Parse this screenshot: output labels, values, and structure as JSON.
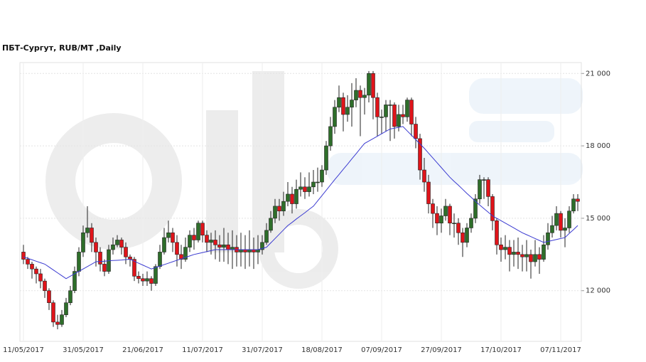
{
  "chart_data": {
    "type": "candlestick",
    "title": "ПБТ-Сургут,  RUB/MT ,Daily",
    "categories": [
      "11/05/2017",
      null,
      null,
      null,
      null,
      null,
      null,
      null,
      null,
      null,
      null,
      null,
      null,
      null,
      "31/05/2017",
      null,
      null,
      null,
      null,
      null,
      null,
      null,
      null,
      null,
      null,
      null,
      null,
      null,
      "21/06/2017",
      null,
      null,
      null,
      null,
      null,
      null,
      null,
      null,
      null,
      null,
      null,
      null,
      null,
      "11/07/2017",
      null,
      null,
      null,
      null,
      null,
      null,
      null,
      null,
      null,
      null,
      null,
      null,
      null,
      "31/07/2017",
      null,
      null,
      null,
      null,
      null,
      null,
      null,
      null,
      null,
      null,
      null,
      null,
      null,
      "18/08/2017",
      null,
      null,
      null,
      null,
      null,
      null,
      null,
      null,
      null,
      null,
      null,
      null,
      null,
      "07/09/2017",
      null,
      null,
      null,
      null,
      null,
      null,
      null,
      null,
      null,
      null,
      null,
      null,
      null,
      "27/09/2017",
      null,
      null,
      null,
      null,
      null,
      null,
      null,
      null,
      null,
      null,
      null,
      null,
      null,
      "17/10/2017",
      null,
      null,
      null,
      null,
      null,
      null,
      null,
      null,
      null,
      null,
      null,
      null,
      null,
      "07/11/2017",
      null,
      null,
      null,
      null
    ],
    "open": [
      13600,
      13300,
      13100,
      12900,
      12700,
      12400,
      12000,
      11500,
      10700,
      10600,
      11000,
      11500,
      12000,
      12800,
      13600,
      14400,
      14600,
      14000,
      13600,
      13100,
      12800,
      13700,
      13900,
      14100,
      13800,
      13400,
      13300,
      12600,
      12500,
      12400,
      12500,
      12300,
      13000,
      13600,
      14200,
      14400,
      14000,
      13500,
      13300,
      13800,
      14300,
      14100,
      14800,
      14300,
      14000,
      14100,
      13900,
      13800,
      13900,
      13700,
      13800,
      13600,
      13700,
      13600,
      13700,
      13600,
      13700,
      14000,
      14500,
      15000,
      15500,
      15300,
      15700,
      16000,
      15600,
      16200,
      16300,
      16100,
      16300,
      16500,
      16500,
      17000,
      18000,
      18800,
      19600,
      20000,
      19300,
      19600,
      19900,
      20300,
      20000,
      20100,
      21000,
      20000,
      19200,
      19200,
      19700,
      19700,
      18800,
      19300,
      19200,
      19900,
      18900,
      18300,
      17000,
      16500,
      15600,
      15200,
      14800,
      15100,
      15500,
      14800,
      14800,
      14400,
      14000,
      14600,
      15000,
      15800,
      16600,
      16600,
      15900,
      14900,
      13900,
      13700,
      13800,
      13500,
      13600,
      13500,
      13400,
      13500,
      13200,
      13500,
      13300,
      13900,
      14400,
      14700,
      15200,
      14500,
      14600,
      15300,
      15800
    ],
    "high": [
      13900,
      13400,
      13200,
      13000,
      12900,
      12500,
      12100,
      11600,
      11000,
      11200,
      11700,
      12200,
      13000,
      13800,
      14700,
      15500,
      14800,
      14200,
      13800,
      13300,
      13900,
      14200,
      14300,
      14200,
      14000,
      13500,
      13400,
      12800,
      12700,
      12800,
      12600,
      13100,
      13900,
      14600,
      14900,
      14600,
      14300,
      13900,
      14200,
      14500,
      14600,
      14900,
      14900,
      14500,
      14400,
      14500,
      14300,
      14600,
      14400,
      14500,
      14300,
      14400,
      14300,
      14500,
      14200,
      14300,
      14300,
      14800,
      15300,
      15800,
      15800,
      16100,
      16500,
      16300,
      16600,
      16900,
      16700,
      16900,
      17000,
      17100,
      17200,
      18200,
      19200,
      19900,
      20500,
      20200,
      20100,
      20600,
      20800,
      20500,
      20400,
      21100,
      21100,
      20200,
      19500,
      19900,
      19900,
      19800,
      19700,
      19700,
      20000,
      20000,
      19200,
      18500,
      17500,
      16800,
      15800,
      15500,
      15400,
      15800,
      15600,
      15200,
      15000,
      14600,
      14800,
      15200,
      16000,
      16800,
      16700,
      16700,
      16000,
      15000,
      14200,
      14300,
      14100,
      14100,
      14200,
      13900,
      14100,
      13700,
      14100,
      13800,
      14300,
      14800,
      15100,
      15500,
      15300,
      15000,
      15500,
      16000,
      16000
    ],
    "low": [
      13100,
      12900,
      12500,
      12300,
      12100,
      11700,
      11200,
      10500,
      10400,
      10500,
      10900,
      11400,
      11900,
      12600,
      13400,
      14200,
      13600,
      13000,
      12800,
      12600,
      12700,
      13500,
      13800,
      13500,
      13100,
      13000,
      12400,
      12300,
      12200,
      12200,
      12000,
      12200,
      12900,
      13500,
      14000,
      13600,
      13000,
      12900,
      13200,
      13600,
      13700,
      14000,
      14000,
      13600,
      13500,
      13300,
      13200,
      13200,
      13100,
      12900,
      13000,
      13000,
      12900,
      13000,
      12900,
      13100,
      13500,
      13900,
      14400,
      14800,
      14900,
      15100,
      15500,
      15200,
      15400,
      15900,
      15800,
      15900,
      16000,
      16100,
      16300,
      16800,
      17800,
      18500,
      19400,
      18600,
      19000,
      18800,
      19600,
      18400,
      19300,
      19800,
      19100,
      18400,
      18500,
      18600,
      18200,
      18300,
      18600,
      18900,
      19000,
      18400,
      17900,
      16600,
      16100,
      15200,
      14600,
      14300,
      14400,
      14900,
      14300,
      14200,
      13900,
      13400,
      13800,
      14400,
      14800,
      15600,
      15800,
      15500,
      14500,
      13500,
      13200,
      13300,
      12800,
      13000,
      12900,
      12800,
      12800,
      12500,
      13000,
      12700,
      13200,
      13700,
      14200,
      14500,
      14200,
      13800,
      14400,
      15200,
      15300
    ],
    "close": [
      13300,
      13100,
      12900,
      12700,
      12400,
      12000,
      11500,
      10700,
      10600,
      11000,
      11500,
      12000,
      12800,
      13600,
      14400,
      14600,
      14000,
      13600,
      13100,
      12800,
      13700,
      13900,
      14100,
      13800,
      13400,
      13300,
      12600,
      12500,
      12400,
      12500,
      12300,
      13000,
      13600,
      14200,
      14400,
      14000,
      13500,
      13300,
      13800,
      14300,
      14100,
      14800,
      14300,
      14000,
      14100,
      13900,
      13800,
      13900,
      13700,
      13800,
      13600,
      13700,
      13600,
      13700,
      13600,
      13700,
      14000,
      14500,
      15000,
      15500,
      15300,
      15700,
      16000,
      15600,
      16200,
      16300,
      16100,
      16300,
      16500,
      16500,
      17000,
      18000,
      18800,
      19600,
      20000,
      19300,
      19600,
      19900,
      20300,
      20000,
      20100,
      21000,
      20000,
      19200,
      19200,
      19700,
      19700,
      18800,
      19300,
      19200,
      19900,
      18900,
      18300,
      17000,
      16500,
      15600,
      15200,
      14800,
      15100,
      15500,
      14800,
      14800,
      14400,
      14000,
      14600,
      15000,
      15800,
      16600,
      16600,
      15900,
      14900,
      13900,
      13700,
      13800,
      13500,
      13600,
      13500,
      13400,
      13500,
      13200,
      13500,
      13300,
      13900,
      14400,
      14700,
      15200,
      14500,
      14600,
      15300,
      15800,
      15700
    ],
    "moving_average": {
      "color": "#3b3bd1",
      "values": [
        13400,
        13340,
        13280,
        13220,
        13160,
        13100,
        12980,
        12860,
        12740,
        12620,
        12500,
        12600,
        12700,
        12800,
        12900,
        13000,
        13100,
        13200,
        13210,
        13220,
        13240,
        13250,
        13260,
        13270,
        13290,
        13300,
        13220,
        13140,
        13060,
        12980,
        12900,
        12960,
        13020,
        13080,
        13140,
        13200,
        13260,
        13320,
        13380,
        13440,
        13500,
        13540,
        13580,
        13620,
        13660,
        13700,
        13700,
        13700,
        13700,
        13700,
        13700,
        13700,
        13700,
        13700,
        13700,
        13700,
        13750,
        13800,
        13980,
        14160,
        14340,
        14520,
        14700,
        14830,
        14970,
        15100,
        15230,
        15370,
        15500,
        15720,
        15940,
        16160,
        16380,
        16600,
        16810,
        17030,
        17240,
        17460,
        17670,
        17890,
        18100,
        18200,
        18300,
        18400,
        18500,
        18600,
        18700,
        18730,
        18770,
        18800,
        18620,
        18440,
        18260,
        18080,
        17900,
        17700,
        17500,
        17300,
        17100,
        16900,
        16700,
        16530,
        16370,
        16200,
        16030,
        15870,
        15700,
        15550,
        15400,
        15250,
        15100,
        15000,
        14900,
        14800,
        14700,
        14600,
        14500,
        14400,
        14320,
        14240,
        14160,
        14080,
        14000,
        14040,
        14080,
        14120,
        14160,
        14200,
        14370,
        14530,
        14700
      ]
    },
    "up_color": "#2e6e2a",
    "down_color": "#e0141a",
    "ylim": [
      9900,
      21450
    ],
    "yticks": [
      {
        "value": 12000,
        "label": "12 000"
      },
      {
        "value": 15000,
        "label": "15 000"
      },
      {
        "value": 18000,
        "label": "18 000"
      },
      {
        "value": 21000,
        "label": "21 000"
      }
    ],
    "grid": true
  }
}
